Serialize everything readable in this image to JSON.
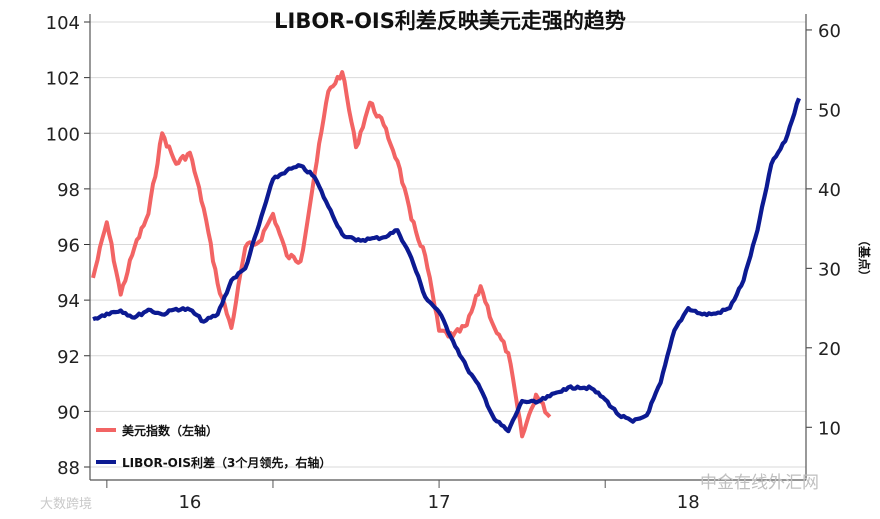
{
  "chart_data": {
    "type": "line",
    "title": "LIBOR-OIS利差反映美元走强的趋势",
    "y2label": "（基点）",
    "x_ticks": [
      "16",
      "17",
      "18"
    ],
    "y_left": {
      "ticks": [
        88,
        90,
        92,
        94,
        96,
        98,
        100,
        102,
        104
      ],
      "ylim": [
        88,
        104
      ]
    },
    "y_right": {
      "ticks": [
        10,
        20,
        30,
        40,
        50,
        60
      ],
      "ylim": [
        5,
        61
      ]
    },
    "grid": true,
    "legend_position": "bottom-left",
    "series": [
      {
        "name": "美元指数（左轴）",
        "axis": "left",
        "color": "#f26464",
        "points": [
          [
            "2015-06",
            94.8
          ],
          [
            "2015-07",
            96.8
          ],
          [
            "2015-08",
            94.2
          ],
          [
            "2015-09",
            95.9
          ],
          [
            "2015-10",
            97.1
          ],
          [
            "2015-11",
            100.0
          ],
          [
            "2015-12",
            98.9
          ],
          [
            "2016-01",
            99.3
          ],
          [
            "2016-02",
            97.3
          ],
          [
            "2016-03",
            94.6
          ],
          [
            "2016-04",
            93.0
          ],
          [
            "2016-05",
            95.9
          ],
          [
            "2016-06",
            96.1
          ],
          [
            "2016-07",
            97.1
          ],
          [
            "2016-08",
            95.6
          ],
          [
            "2016-09",
            95.4
          ],
          [
            "2016-10",
            98.5
          ],
          [
            "2016-11",
            101.5
          ],
          [
            "2016-12",
            102.2
          ],
          [
            "2017-01",
            99.5
          ],
          [
            "2017-02",
            101.1
          ],
          [
            "2017-03",
            100.3
          ],
          [
            "2017-04",
            99.0
          ],
          [
            "2017-05",
            96.9
          ],
          [
            "2017-06",
            95.6
          ],
          [
            "2017-07",
            92.9
          ],
          [
            "2017-08",
            92.7
          ],
          [
            "2017-09",
            93.1
          ],
          [
            "2017-10",
            94.5
          ],
          [
            "2017-11",
            93.0
          ],
          [
            "2017-12",
            92.1
          ],
          [
            "2018-01",
            89.1
          ],
          [
            "2018-02",
            90.6
          ],
          [
            "2018-03",
            89.8
          ]
        ]
      },
      {
        "name": "LIBOR-OIS利差（3个月领先，右轴）",
        "axis": "right",
        "color": "#0c1a92",
        "points": [
          [
            "2015-06",
            23.6
          ],
          [
            "2015-07",
            24.3
          ],
          [
            "2015-08",
            24.7
          ],
          [
            "2015-09",
            23.8
          ],
          [
            "2015-10",
            24.8
          ],
          [
            "2015-11",
            24.2
          ],
          [
            "2015-12",
            24.9
          ],
          [
            "2016-01",
            24.8
          ],
          [
            "2016-02",
            23.3
          ],
          [
            "2016-03",
            24.2
          ],
          [
            "2016-04",
            28.5
          ],
          [
            "2016-05",
            30.0
          ],
          [
            "2016-06",
            35.5
          ],
          [
            "2016-07",
            41.2
          ],
          [
            "2016-08",
            42.3
          ],
          [
            "2016-09",
            42.9
          ],
          [
            "2016-10",
            41.5
          ],
          [
            "2016-11",
            37.8
          ],
          [
            "2016-12",
            34.3
          ],
          [
            "2017-01",
            33.5
          ],
          [
            "2017-02",
            33.7
          ],
          [
            "2017-03",
            33.9
          ],
          [
            "2017-04",
            34.8
          ],
          [
            "2017-05",
            31.3
          ],
          [
            "2017-06",
            26.4
          ],
          [
            "2017-07",
            24.5
          ],
          [
            "2017-08",
            20.9
          ],
          [
            "2017-09",
            17.5
          ],
          [
            "2017-10",
            14.8
          ],
          [
            "2017-11",
            11.0
          ],
          [
            "2017-12",
            9.5
          ],
          [
            "2018-01",
            13.3
          ],
          [
            "2018-02",
            13.1
          ],
          [
            "2018-03",
            13.9
          ],
          [
            "2018-04",
            14.8
          ],
          [
            "2018-05",
            15.1
          ],
          [
            "2018-06",
            14.9
          ],
          [
            "2018-07",
            13.5
          ],
          [
            "2018-08",
            11.5
          ],
          [
            "2018-09",
            10.7
          ],
          [
            "2018-10",
            11.5
          ],
          [
            "2018-11",
            15.6
          ],
          [
            "2018-12",
            22.2
          ],
          [
            "2019-01",
            25.0
          ],
          [
            "2019-02",
            24.2
          ],
          [
            "2019-03",
            24.3
          ],
          [
            "2019-04",
            25.0
          ],
          [
            "2019-05",
            28.5
          ],
          [
            "2019-06",
            34.8
          ],
          [
            "2019-07",
            43.1
          ],
          [
            "2019-08",
            46.0
          ],
          [
            "2019-09",
            51.4
          ]
        ]
      }
    ]
  },
  "watermark_left": "大数跨境",
  "watermark_right": "中金在线外汇网"
}
